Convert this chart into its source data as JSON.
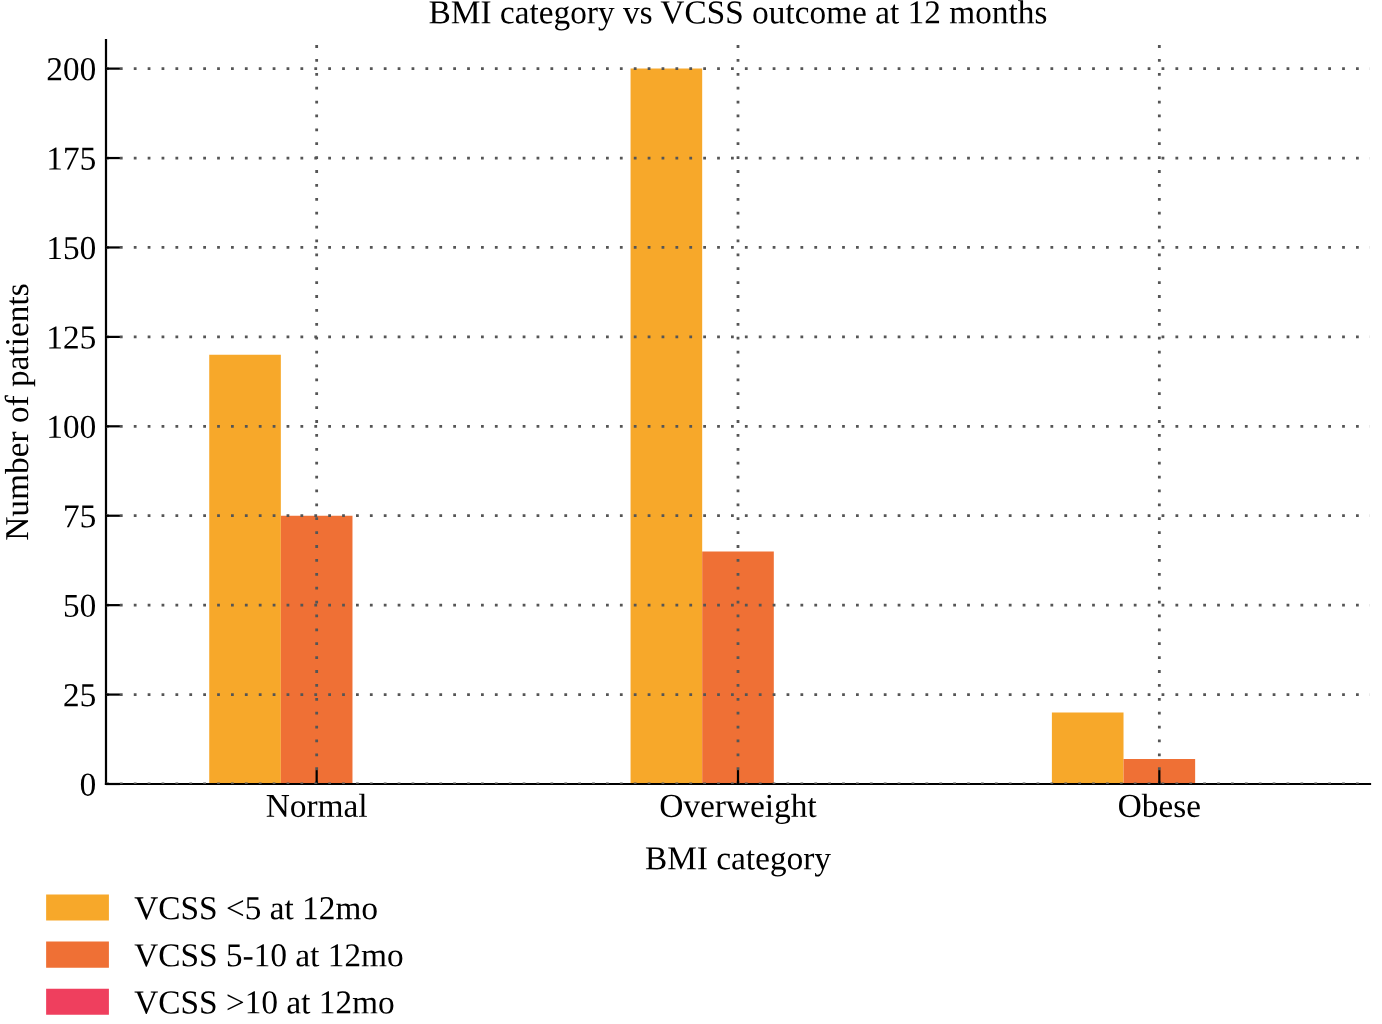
{
  "chart_data": {
    "type": "bar",
    "title": "BMI category vs VCSS outcome at 12 months",
    "xlabel": "BMI category",
    "ylabel": "Number of patients",
    "categories": [
      "Normal",
      "Overweight",
      "Obese"
    ],
    "series": [
      {
        "name": "VCSS <5 at 12mo",
        "color": "#f7a82a",
        "values": [
          120,
          200,
          20
        ]
      },
      {
        "name": "VCSS 5-10 at 12mo",
        "color": "#ef7035",
        "values": [
          75,
          65,
          7
        ]
      },
      {
        "name": "VCSS >10 at 12mo",
        "color": "#ef3f5e",
        "values": [
          0,
          0,
          0
        ]
      }
    ],
    "ylim": [
      0,
      208
    ],
    "yticks": [
      0,
      25,
      50,
      75,
      100,
      125,
      150,
      175,
      200
    ],
    "grid": true,
    "legend": "bottom left"
  }
}
